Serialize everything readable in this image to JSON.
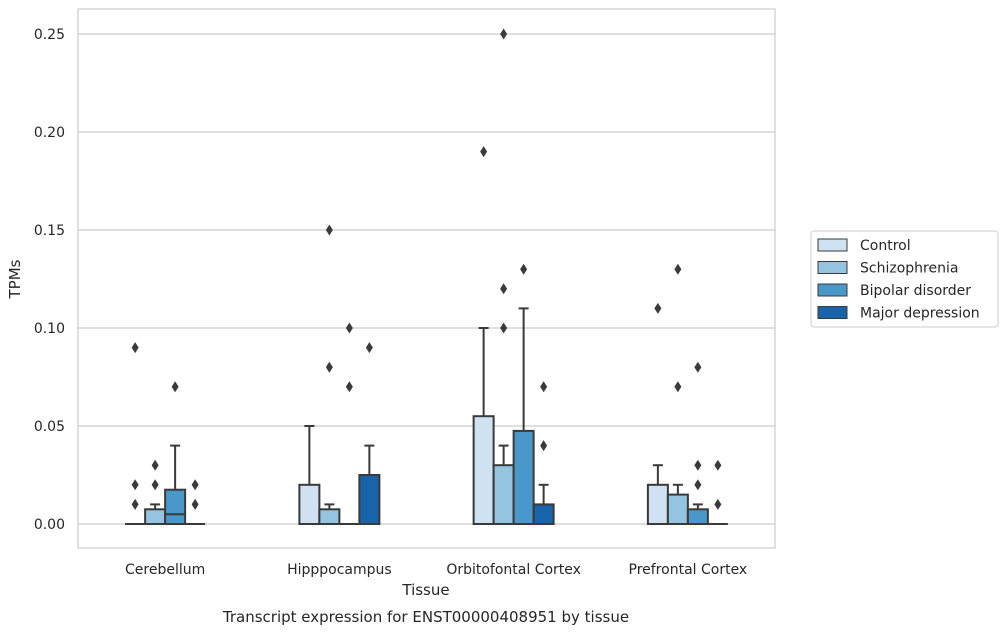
{
  "chart_data": {
    "type": "box",
    "title": "",
    "caption": "Transcript expression for ENST00000408951 by tissue",
    "xlabel": "Tissue",
    "ylabel": "TPMs",
    "ylim": [
      -0.012,
      0.263
    ],
    "yticks": [
      0.0,
      0.05,
      0.1,
      0.15,
      0.2,
      0.25
    ],
    "ytick_labels": [
      "0.00",
      "0.05",
      "0.10",
      "0.15",
      "0.20",
      "0.25"
    ],
    "grid": "horizontal",
    "legend_position": "right",
    "categories": [
      "Cerebellum",
      "Hipppocampus",
      "Orbitofontal Cortex",
      "Prefrontal Cortex"
    ],
    "series": [
      {
        "name": "Control",
        "color": "#d0e1f2",
        "boxes": [
          {
            "q1": 0,
            "median": 0,
            "q3": 0,
            "whisker_low": 0,
            "whisker_high": 0,
            "outliers": [
              0.09,
              0.02,
              0.01
            ]
          },
          {
            "q1": 0,
            "median": 0,
            "q3": 0.02,
            "whisker_low": 0,
            "whisker_high": 0.05,
            "outliers": []
          },
          {
            "q1": 0,
            "median": 0,
            "q3": 0.055,
            "whisker_low": 0,
            "whisker_high": 0.1,
            "outliers": [
              0.19
            ]
          },
          {
            "q1": 0,
            "median": 0,
            "q3": 0.02,
            "whisker_low": 0,
            "whisker_high": 0.03,
            "outliers": [
              0.11
            ]
          }
        ]
      },
      {
        "name": "Schizophrenia",
        "color": "#94c4df",
        "boxes": [
          {
            "q1": 0,
            "median": 0,
            "q3": 0.0075,
            "whisker_low": 0,
            "whisker_high": 0.01,
            "outliers": [
              0.03,
              0.02
            ]
          },
          {
            "q1": 0,
            "median": 0,
            "q3": 0.0075,
            "whisker_low": 0,
            "whisker_high": 0.01,
            "outliers": [
              0.15,
              0.08
            ]
          },
          {
            "q1": 0,
            "median": 0,
            "q3": 0.03,
            "whisker_low": 0,
            "whisker_high": 0.04,
            "outliers": [
              0.25,
              0.12,
              0.1
            ]
          },
          {
            "q1": 0,
            "median": 0,
            "q3": 0.015,
            "whisker_low": 0,
            "whisker_high": 0.02,
            "outliers": [
              0.13,
              0.07
            ]
          }
        ]
      },
      {
        "name": "Bipolar disorder",
        "color": "#4a98c9",
        "boxes": [
          {
            "q1": 0,
            "median": 0.005,
            "q3": 0.0175,
            "whisker_low": 0,
            "whisker_high": 0.04,
            "outliers": [
              0.07
            ]
          },
          {
            "q1": 0,
            "median": 0,
            "q3": 0,
            "whisker_low": 0,
            "whisker_high": 0,
            "outliers": [
              0.1,
              0.07
            ]
          },
          {
            "q1": 0,
            "median": 0,
            "q3": 0.0475,
            "whisker_low": 0,
            "whisker_high": 0.11,
            "outliers": [
              0.13
            ]
          },
          {
            "q1": 0,
            "median": 0,
            "q3": 0.0075,
            "whisker_low": 0,
            "whisker_high": 0.01,
            "outliers": [
              0.08,
              0.03,
              0.02
            ]
          }
        ]
      },
      {
        "name": "Major depression",
        "color": "#1764ab",
        "boxes": [
          {
            "q1": 0,
            "median": 0,
            "q3": 0,
            "whisker_low": 0,
            "whisker_high": 0,
            "outliers": [
              0.02,
              0.01
            ]
          },
          {
            "q1": 0,
            "median": 0,
            "q3": 0.025,
            "whisker_low": 0,
            "whisker_high": 0.04,
            "outliers": [
              0.09
            ]
          },
          {
            "q1": 0,
            "median": 0,
            "q3": 0.01,
            "whisker_low": 0,
            "whisker_high": 0.02,
            "outliers": [
              0.07,
              0.04
            ]
          },
          {
            "q1": 0,
            "median": 0,
            "q3": 0,
            "whisker_low": 0,
            "whisker_high": 0,
            "outliers": [
              0.03,
              0.01
            ]
          }
        ]
      }
    ]
  }
}
